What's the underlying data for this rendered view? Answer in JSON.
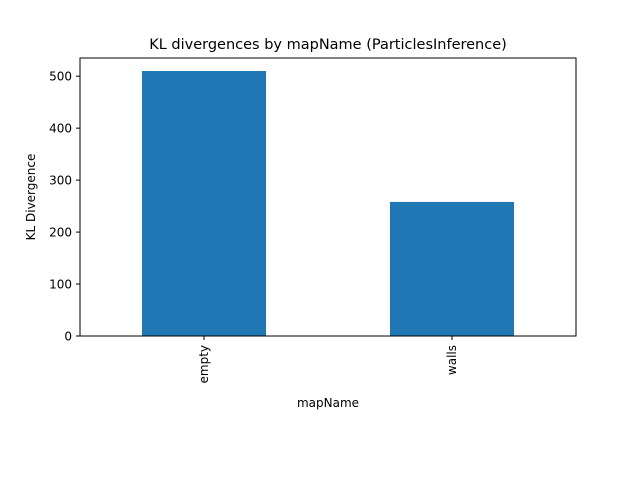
{
  "chart_data": {
    "type": "bar",
    "title": "KL divergences by mapName (ParticlesInference)",
    "xlabel": "mapName",
    "ylabel": "KL Divergence",
    "categories": [
      "empty",
      "walls"
    ],
    "values": [
      510,
      258
    ],
    "ylim": [
      0,
      535
    ],
    "yticks": [
      0,
      100,
      200,
      300,
      400,
      500
    ],
    "bar_color": "#1f77b4",
    "grid": false,
    "legend": "none",
    "xtick_rotation": "vertical"
  }
}
